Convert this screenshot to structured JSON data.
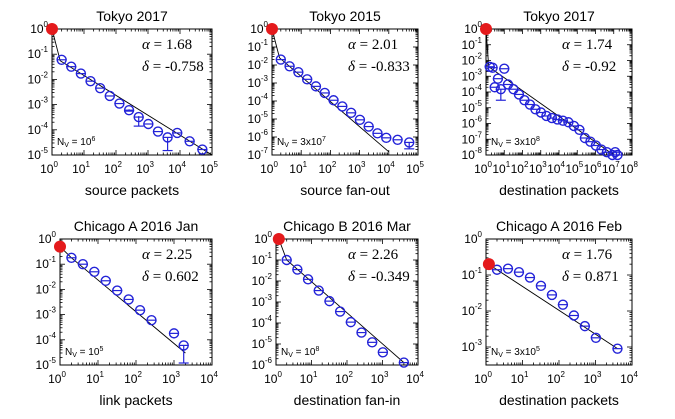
{
  "chart_data": [
    {
      "type": "scatter",
      "title": "Tokyo 2017",
      "xlabel": "source packets",
      "ylabel": "",
      "log_x": true,
      "log_y": true,
      "xlim_exp": [
        0,
        5
      ],
      "ylim_exp": [
        -5,
        0
      ],
      "alpha_text": "1.68",
      "delta_text": "-0.758",
      "nv_base": "N",
      "nv_sub": "V",
      "nv_value": " = 10",
      "nv_sup": "6",
      "origin_point": [
        1,
        1
      ],
      "fit": [
        [
          1,
          1
        ],
        [
          1.8,
          0.055
        ],
        [
          100000,
          8.5e-06
        ]
      ],
      "points": [
        {
          "x": 2,
          "y": 0.06,
          "lo": 0.06,
          "hi": 0.06
        },
        {
          "x": 4,
          "y": 0.032,
          "lo": 0.032,
          "hi": 0.032
        },
        {
          "x": 8,
          "y": 0.017,
          "lo": 0.017,
          "hi": 0.017
        },
        {
          "x": 16,
          "y": 0.0085,
          "lo": 0.0085,
          "hi": 0.0085
        },
        {
          "x": 32,
          "y": 0.0045,
          "lo": 0.0045,
          "hi": 0.0045
        },
        {
          "x": 64,
          "y": 0.0022,
          "lo": 0.0022,
          "hi": 0.0022
        },
        {
          "x": 128,
          "y": 0.0011,
          "lo": 0.0011,
          "hi": 0.0011
        },
        {
          "x": 256,
          "y": 0.0006,
          "lo": 0.00055,
          "hi": 0.00065
        },
        {
          "x": 512,
          "y": 0.00032,
          "lo": 0.00014,
          "hi": 0.00035
        },
        {
          "x": 1024,
          "y": 0.00017,
          "lo": 0.00017,
          "hi": 0.00017
        },
        {
          "x": 2048,
          "y": 8.5e-05,
          "lo": 8.5e-05,
          "hi": 8.5e-05
        },
        {
          "x": 4096,
          "y": 5e-05,
          "lo": 1.5e-05,
          "hi": 5e-05
        },
        {
          "x": 8192,
          "y": 7.5e-05,
          "lo": 7.5e-05,
          "hi": 7.5e-05
        },
        {
          "x": 20000,
          "y": 3.5e-05,
          "lo": 3.5e-05,
          "hi": 3.5e-05
        },
        {
          "x": 50000,
          "y": 1.65e-05,
          "lo": 1.65e-05,
          "hi": 1.65e-05
        }
      ]
    },
    {
      "type": "scatter",
      "title": "Tokyo 2015",
      "xlabel": "source fan-out",
      "ylabel": "",
      "log_x": true,
      "log_y": true,
      "xlim_exp": [
        0,
        5
      ],
      "ylim_exp": [
        -7,
        0
      ],
      "alpha_text": "2.01",
      "delta_text": "-0.833",
      "nv_base": "N",
      "nv_sub": "V",
      "nv_value": " = 3x10",
      "nv_sup": "7",
      "origin_point": [
        1,
        1
      ],
      "fit": [
        [
          1,
          1
        ],
        [
          1.8,
          0.025
        ],
        [
          10000,
          1.5e-07
        ]
      ],
      "points": [
        {
          "x": 2,
          "y": 0.02,
          "lo": 0.02,
          "hi": 0.02
        },
        {
          "x": 4,
          "y": 0.0085,
          "lo": 0.0085,
          "hi": 0.0085
        },
        {
          "x": 8,
          "y": 0.004,
          "lo": 0.004,
          "hi": 0.004
        },
        {
          "x": 16,
          "y": 0.0016,
          "lo": 0.0016,
          "hi": 0.0016
        },
        {
          "x": 32,
          "y": 0.00065,
          "lo": 0.00065,
          "hi": 0.00065
        },
        {
          "x": 64,
          "y": 0.00028,
          "lo": 0.00028,
          "hi": 0.00028
        },
        {
          "x": 128,
          "y": 0.00011,
          "lo": 0.00011,
          "hi": 0.00011
        },
        {
          "x": 256,
          "y": 5e-05,
          "lo": 5e-05,
          "hi": 5e-05
        },
        {
          "x": 512,
          "y": 2.2e-05,
          "lo": 2.2e-05,
          "hi": 2.2e-05
        },
        {
          "x": 1024,
          "y": 9e-06,
          "lo": 9e-06,
          "hi": 9e-06
        },
        {
          "x": 2048,
          "y": 3.8e-06,
          "lo": 3.8e-06,
          "hi": 3.8e-06
        },
        {
          "x": 4096,
          "y": 1.6e-06,
          "lo": 1.6e-06,
          "hi": 1.6e-06
        },
        {
          "x": 8192,
          "y": 9e-07,
          "lo": 9e-07,
          "hi": 9e-07
        },
        {
          "x": 20000,
          "y": 7e-07,
          "lo": 7e-07,
          "hi": 7e-07
        },
        {
          "x": 50000,
          "y": 5e-07,
          "lo": 2.2e-07,
          "hi": 5e-07
        }
      ]
    },
    {
      "type": "scatter",
      "title": "Tokyo 2017",
      "xlabel": "destination packets",
      "ylabel": "",
      "log_x": true,
      "log_y": true,
      "xlim_exp": [
        0,
        8
      ],
      "ylim_exp": [
        -8,
        0
      ],
      "alpha_text": "1.74",
      "delta_text": "-0.92",
      "nv_base": "N",
      "nv_sub": "V",
      "nv_value": " = 3x10",
      "nv_sup": "8",
      "origin_point": [
        1,
        1
      ],
      "fit": [
        [
          1,
          1
        ],
        [
          1.4,
          0.004
        ],
        [
          10000000,
          1e-08
        ]
      ],
      "points": [
        {
          "x": 1.6,
          "y": 0.004,
          "lo": 0.004,
          "hi": 0.004
        },
        {
          "x": 2.3,
          "y": 0.0035,
          "lo": 0.0035,
          "hi": 0.0035
        },
        {
          "x": 3,
          "y": 0.0002,
          "lo": 0.0002,
          "hi": 0.0002
        },
        {
          "x": 4.5,
          "y": 0.0007,
          "lo": 0.0007,
          "hi": 0.0007
        },
        {
          "x": 6.5,
          "y": 0.00015,
          "lo": 3e-05,
          "hi": 0.00015
        },
        {
          "x": 10,
          "y": 0.003,
          "lo": 0.003,
          "hi": 0.003
        },
        {
          "x": 16,
          "y": 0.0003,
          "lo": 0.0003,
          "hi": 0.0003
        },
        {
          "x": 32,
          "y": 0.00015,
          "lo": 0.00015,
          "hi": 0.00015
        },
        {
          "x": 64,
          "y": 7e-05,
          "lo": 7e-05,
          "hi": 7e-05
        },
        {
          "x": 128,
          "y": 3e-05,
          "lo": 3e-05,
          "hi": 3e-05
        },
        {
          "x": 256,
          "y": 1.6e-05,
          "lo": 1.6e-05,
          "hi": 1.6e-05
        },
        {
          "x": 512,
          "y": 8e-06,
          "lo": 8e-06,
          "hi": 8e-06
        },
        {
          "x": 1024,
          "y": 5e-06,
          "lo": 5e-06,
          "hi": 5e-06
        },
        {
          "x": 2048,
          "y": 3e-06,
          "lo": 3e-06,
          "hi": 3e-06
        },
        {
          "x": 4096,
          "y": 2.2e-06,
          "lo": 2.2e-06,
          "hi": 2.2e-06
        },
        {
          "x": 8192,
          "y": 1.8e-06,
          "lo": 1.8e-06,
          "hi": 1.8e-06
        },
        {
          "x": 16384,
          "y": 1.5e-06,
          "lo": 1.5e-06,
          "hi": 1.5e-06
        },
        {
          "x": 32768,
          "y": 1.2e-06,
          "lo": 1.2e-06,
          "hi": 1.2e-06
        },
        {
          "x": 65536,
          "y": 7e-07,
          "lo": 7e-07,
          "hi": 7e-07
        },
        {
          "x": 131072,
          "y": 4e-07,
          "lo": 4e-07,
          "hi": 4e-07
        },
        {
          "x": 262144,
          "y": 1.2e-07,
          "lo": 1.2e-07,
          "hi": 1.2e-07
        },
        {
          "x": 524288,
          "y": 7e-08,
          "lo": 7e-08,
          "hi": 7e-08
        },
        {
          "x": 1048576,
          "y": 4e-08,
          "lo": 4e-08,
          "hi": 4e-08
        },
        {
          "x": 2097152,
          "y": 2.2e-08,
          "lo": 2.2e-08,
          "hi": 2.2e-08
        },
        {
          "x": 4194304,
          "y": 1.5e-08,
          "lo": 1.5e-08,
          "hi": 1.5e-08
        },
        {
          "x": 8388608,
          "y": 1e-08,
          "lo": 1e-08,
          "hi": 1e-08
        },
        {
          "x": 12000000,
          "y": 1.5e-08,
          "lo": 1.5e-08,
          "hi": 1.5e-08
        },
        {
          "x": 16000000,
          "y": 6.5e-09,
          "lo": 6.5e-09,
          "hi": 6.5e-09
        }
      ]
    },
    {
      "type": "scatter",
      "title": "Chicago A 2016 Jan",
      "xlabel": "link packets",
      "ylabel": "",
      "log_x": true,
      "log_y": true,
      "xlim_exp": [
        0,
        4
      ],
      "ylim_exp": [
        -5,
        0
      ],
      "alpha_text": "2.25",
      "delta_text": "0.602",
      "nv_base": "N",
      "nv_sub": "V",
      "nv_value": " = 10",
      "nv_sup": "5",
      "origin_point": [
        1,
        0.5
      ],
      "fit": [
        [
          1,
          0.5
        ],
        [
          2,
          0.18
        ],
        [
          2000,
          3e-05
        ]
      ],
      "points": [
        {
          "x": 2,
          "y": 0.18,
          "lo": 0.18,
          "hi": 0.18
        },
        {
          "x": 4,
          "y": 0.1,
          "lo": 0.1,
          "hi": 0.1
        },
        {
          "x": 8,
          "y": 0.05,
          "lo": 0.05,
          "hi": 0.05
        },
        {
          "x": 16,
          "y": 0.022,
          "lo": 0.022,
          "hi": 0.022
        },
        {
          "x": 32,
          "y": 0.009,
          "lo": 0.009,
          "hi": 0.009
        },
        {
          "x": 64,
          "y": 0.004,
          "lo": 0.004,
          "hi": 0.004
        },
        {
          "x": 128,
          "y": 0.0015,
          "lo": 0.0015,
          "hi": 0.0015
        },
        {
          "x": 256,
          "y": 0.0006,
          "lo": 0.0006,
          "hi": 0.0006
        },
        {
          "x": 1000,
          "y": 0.00018,
          "lo": 0.00018,
          "hi": 0.00018
        },
        {
          "x": 1800,
          "y": 6e-05,
          "lo": 1.2e-05,
          "hi": 6e-05
        }
      ]
    },
    {
      "type": "scatter",
      "title": "Chicago B 2016 Mar",
      "xlabel": "destination fan-in",
      "ylabel": "",
      "log_x": true,
      "log_y": true,
      "xlim_exp": [
        0,
        4
      ],
      "ylim_exp": [
        -6,
        0
      ],
      "alpha_text": "2.26",
      "delta_text": "-0.349",
      "nv_base": "N",
      "nv_sub": "V",
      "nv_value": " = 10",
      "nv_sup": "8",
      "origin_point": [
        1.2,
        1
      ],
      "fit": [
        [
          1.2,
          1
        ],
        [
          2,
          0.1
        ],
        [
          4000,
          1.3e-06
        ]
      ],
      "points": [
        {
          "x": 2,
          "y": 0.1,
          "lo": 0.1,
          "hi": 0.1
        },
        {
          "x": 4,
          "y": 0.035,
          "lo": 0.035,
          "hi": 0.035
        },
        {
          "x": 8,
          "y": 0.012,
          "lo": 0.012,
          "hi": 0.012
        },
        {
          "x": 16,
          "y": 0.0035,
          "lo": 0.0035,
          "hi": 0.0035
        },
        {
          "x": 32,
          "y": 0.0011,
          "lo": 0.0011,
          "hi": 0.0011
        },
        {
          "x": 64,
          "y": 0.00035,
          "lo": 0.00035,
          "hi": 0.00035
        },
        {
          "x": 128,
          "y": 0.00011,
          "lo": 0.00011,
          "hi": 0.00011
        },
        {
          "x": 256,
          "y": 3.5e-05,
          "lo": 3.5e-05,
          "hi": 3.5e-05
        },
        {
          "x": 512,
          "y": 1.2e-05,
          "lo": 1.2e-05,
          "hi": 1.2e-05
        },
        {
          "x": 1024,
          "y": 4e-06,
          "lo": 4e-06,
          "hi": 4e-06
        },
        {
          "x": 4000,
          "y": 1.3e-06,
          "lo": 1.3e-06,
          "hi": 1.3e-06
        }
      ]
    },
    {
      "type": "scatter",
      "title": "Chicago A 2016 Feb",
      "xlabel": "destination packets",
      "ylabel": "",
      "log_x": true,
      "log_y": true,
      "xlim_exp": [
        0,
        4
      ],
      "ylim_exp": [
        -3.5,
        0
      ],
      "alpha_text": "1.76",
      "delta_text": "0.871",
      "nv_base": "N",
      "nv_sub": "V",
      "nv_value": " = 3x10",
      "nv_sup": "5",
      "origin_point": [
        1.2,
        0.2
      ],
      "fit": [
        [
          1.2,
          0.2
        ],
        [
          2,
          0.14
        ],
        [
          4000,
          0.0009
        ]
      ],
      "points": [
        {
          "x": 2,
          "y": 0.14,
          "lo": 0.14,
          "hi": 0.14
        },
        {
          "x": 4,
          "y": 0.15,
          "lo": 0.15,
          "hi": 0.15
        },
        {
          "x": 8,
          "y": 0.12,
          "lo": 0.12,
          "hi": 0.12
        },
        {
          "x": 16,
          "y": 0.085,
          "lo": 0.085,
          "hi": 0.085
        },
        {
          "x": 32,
          "y": 0.05,
          "lo": 0.05,
          "hi": 0.05
        },
        {
          "x": 64,
          "y": 0.028,
          "lo": 0.028,
          "hi": 0.028
        },
        {
          "x": 128,
          "y": 0.015,
          "lo": 0.015,
          "hi": 0.015
        },
        {
          "x": 256,
          "y": 0.0075,
          "lo": 0.0075,
          "hi": 0.0075
        },
        {
          "x": 512,
          "y": 0.0038,
          "lo": 0.0038,
          "hi": 0.0038
        },
        {
          "x": 1024,
          "y": 0.0018,
          "lo": 0.0018,
          "hi": 0.0018
        },
        {
          "x": 4000,
          "y": 0.0009,
          "lo": 0.0009,
          "hi": 0.0009
        }
      ]
    }
  ],
  "colors": {
    "marker": "#2323d8",
    "origin": "#e41a1c",
    "axis": "#000000"
  }
}
